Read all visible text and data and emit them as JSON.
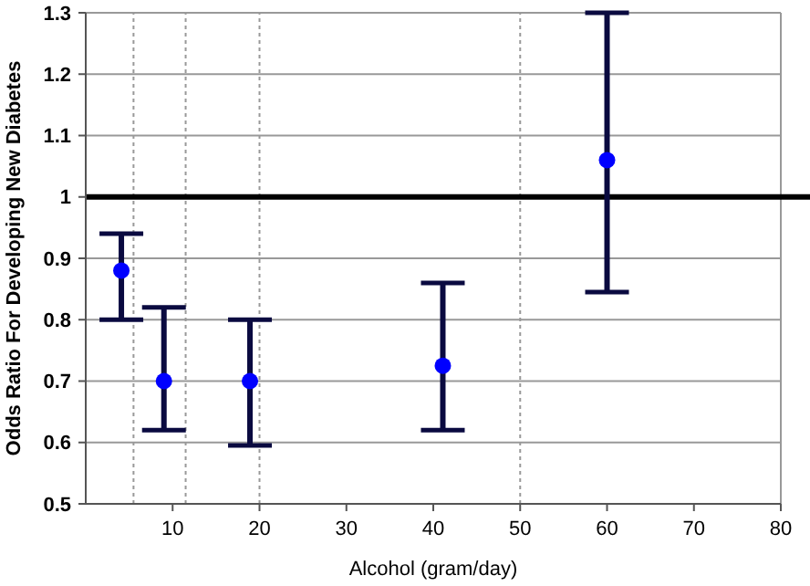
{
  "chart_data": {
    "type": "scatter",
    "xlabel": "Alcohol (gram/day)",
    "ylabel": "Odds Ratio For Developing New Diabetes",
    "x": [
      4.1,
      9,
      18.9,
      41.1,
      60
    ],
    "series": [
      {
        "color": "#0000ff",
        "values": [
          0.88,
          0.7,
          0.7,
          0.725,
          1.06
        ],
        "errors": [
          [
            0.8,
            0.94
          ],
          [
            0.62,
            0.82
          ],
          [
            0.595,
            0.8
          ],
          [
            0.62,
            0.86
          ],
          [
            0.845,
            1.3
          ]
        ]
      }
    ],
    "xlim": [
      0,
      80
    ],
    "xticks": [
      10,
      20,
      30,
      40,
      50,
      60,
      70,
      80
    ],
    "ylim": [
      0.5,
      1.3
    ],
    "yticks": [
      {
        "value": 0.5,
        "label": "0.5"
      },
      {
        "value": 0.6,
        "label": "0.6"
      },
      {
        "value": 0.7,
        "label": "0.7"
      },
      {
        "value": 0.8,
        "label": "0.8"
      },
      {
        "value": 0.9,
        "label": "0.9"
      },
      {
        "value": 1,
        "label": "1"
      },
      {
        "value": 1.1,
        "label": "1.1"
      },
      {
        "value": 1.2,
        "label": "1.2"
      },
      {
        "value": 1.3,
        "label": "1.3"
      }
    ],
    "grid": "y",
    "marker": "circle",
    "ref_lines": [
      {
        "axis": "y",
        "value": 1,
        "color": "#000000",
        "line_style": "solid"
      },
      {
        "axis": "x",
        "value": 5.5,
        "color": "#999999",
        "line_style": "dotted"
      },
      {
        "axis": "x",
        "value": 11.5,
        "color": "#999999",
        "line_style": "dotted"
      },
      {
        "axis": "x",
        "value": 20,
        "color": "#999999",
        "line_style": "dotted"
      },
      {
        "axis": "x",
        "value": 50,
        "color": "#999999",
        "line_style": "dotted"
      }
    ]
  }
}
